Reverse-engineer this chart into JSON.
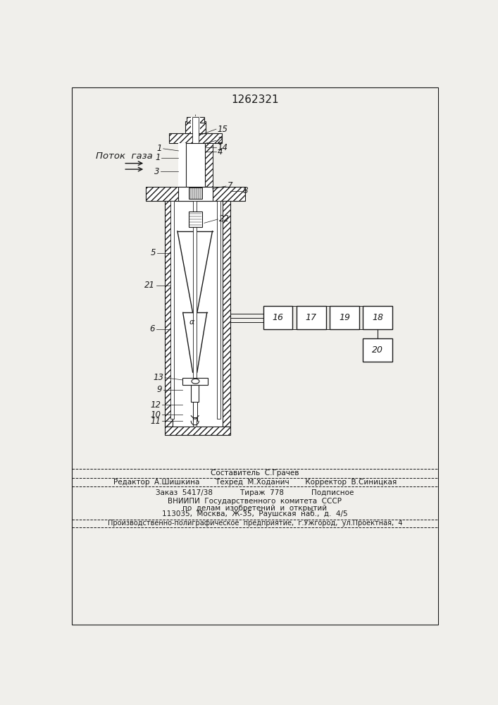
{
  "patent_num": "1262321",
  "bg_color": "#f0efeb",
  "lc": "#1a1a1a",
  "flow_label": "Поток  газа",
  "footer": {
    "line0": "Составитель  С.Грачев",
    "line1": "Редактор  А.Шишкина       Техред  М.Ходанич       Корректор  В.Синицкая",
    "line2": "Заказ  5417/38            Тираж  778            Подписное",
    "line3": "ВНИИПИ  Государственного  комитета  СССР",
    "line4": "по  делам  изобретений  и  открытий",
    "line5": "113035,  Москва,  Ж-35,  Раушская  наб.,  д.  4/5",
    "line6": "Производственно-полиграфическое  предприятие,  г.Ужгород,  ул.Проектная,  4"
  }
}
